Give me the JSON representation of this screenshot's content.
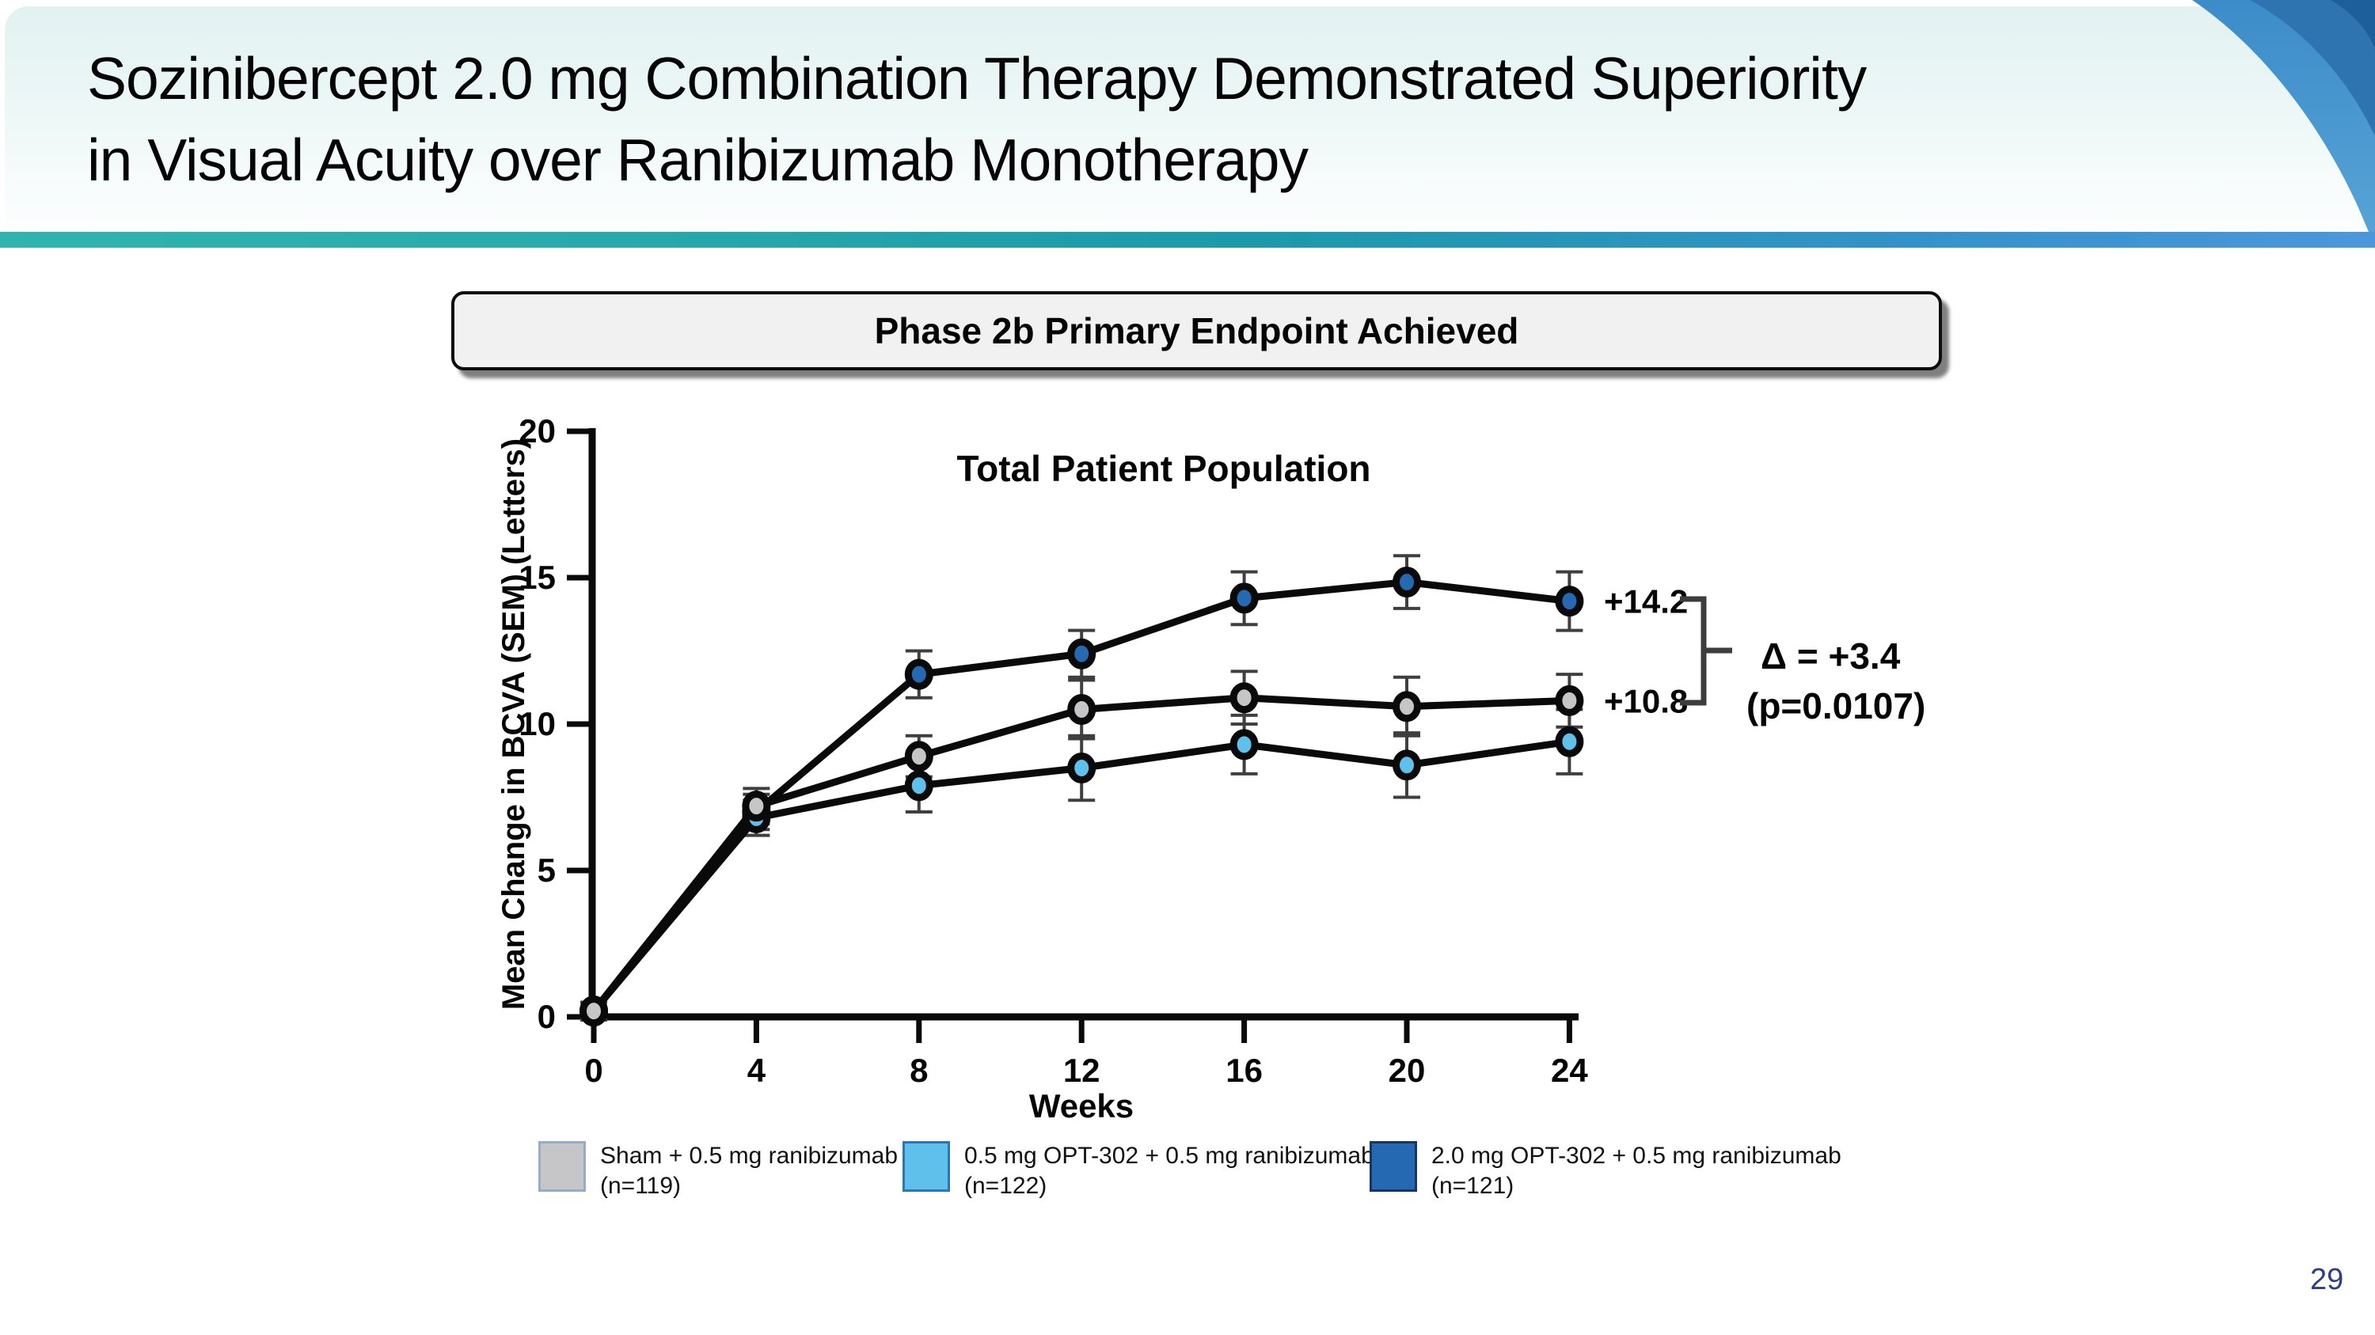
{
  "slide": {
    "title_line1": "Sozinibercept 2.0 mg Combination Therapy Demonstrated Superiority",
    "title_line2": "in Visual Acuity over Ranibizumab Monotherapy",
    "page_number": "29"
  },
  "banner": {
    "label": "Phase 2b Primary Endpoint Achieved"
  },
  "chart_data": {
    "type": "line",
    "title": "Total Patient Population",
    "xlabel": "Weeks",
    "ylabel": "Mean Change in BCVA (SEM) (Letters)",
    "x": [
      0,
      4,
      8,
      12,
      16,
      20,
      24
    ],
    "xtick_labels": [
      "0",
      "4",
      "8",
      "12",
      "16",
      "20",
      "24"
    ],
    "yticks": [
      0,
      5,
      10,
      15,
      20
    ],
    "ytick_labels": [
      "0",
      "5",
      "10",
      "15",
      "20"
    ],
    "ylim": [
      0,
      20
    ],
    "grid": false,
    "legend_position": "bottom",
    "series": [
      {
        "name": "Sham + 0.5 mg ranibizumab",
        "n_label": "(n=119)",
        "color": "#c6c6c8",
        "legend_border": "#93aec6",
        "values": [
          0.2,
          7.2,
          8.9,
          10.5,
          10.9,
          10.6,
          10.8
        ],
        "sem": [
          0.3,
          0.6,
          0.7,
          1.0,
          0.9,
          1.0,
          0.9
        ]
      },
      {
        "name": "0.5 mg OPT-302 + 0.5 mg ranibizumab",
        "n_label": "(n=122)",
        "color": "#5fc0ec",
        "legend_border": "#2e75b6",
        "values": [
          0.2,
          6.8,
          7.9,
          8.5,
          9.3,
          8.6,
          9.4
        ],
        "sem": [
          0.3,
          0.6,
          0.9,
          1.1,
          1.0,
          1.1,
          1.1
        ]
      },
      {
        "name": "2.0 mg OPT-302 + 0.5 mg ranibizumab",
        "n_label": "(n=121)",
        "color": "#2569b3",
        "legend_border": "#17375e",
        "values": [
          0.2,
          7.0,
          11.7,
          12.4,
          14.3,
          14.85,
          14.2
        ],
        "sem": [
          0.3,
          0.6,
          0.8,
          0.8,
          0.9,
          0.9,
          1.0
        ]
      }
    ],
    "annotations": {
      "top_value_label": "+14.2",
      "bottom_value_label": "+10.8",
      "delta_line1": "Δ = +3.4",
      "delta_line2": "(p=0.0107)"
    }
  }
}
